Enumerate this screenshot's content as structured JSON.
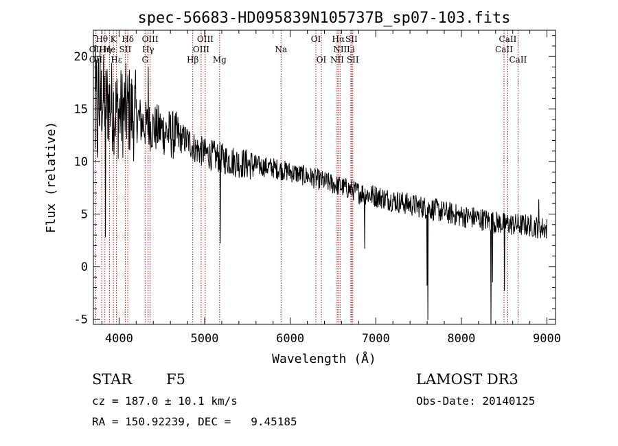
{
  "chart_data": {
    "type": "line",
    "title": "spec-56683-HD095839N105737B_sp07-103.fits",
    "xlabel": "Wavelength (Å)",
    "ylabel": "Flux (relative)",
    "xlim": [
      3700,
      9100
    ],
    "ylim": [
      -5.5,
      22.5
    ],
    "xticks": [
      4000,
      5000,
      6000,
      7000,
      8000,
      9000
    ],
    "yticks": [
      -5,
      0,
      5,
      10,
      15,
      20
    ],
    "line_color": "#000000",
    "marker_color": "#b00000",
    "continuum": [
      [
        3720,
        14
      ],
      [
        3800,
        16
      ],
      [
        3900,
        15.5
      ],
      [
        4000,
        14.5
      ],
      [
        4100,
        15
      ],
      [
        4200,
        14.2
      ],
      [
        4300,
        13.5
      ],
      [
        4400,
        13.2
      ],
      [
        4500,
        13
      ],
      [
        4600,
        12.6
      ],
      [
        4700,
        12.3
      ],
      [
        4800,
        12
      ],
      [
        4900,
        11.2
      ],
      [
        5000,
        10.8
      ],
      [
        5200,
        10.3
      ],
      [
        5400,
        9.9
      ],
      [
        5600,
        9.6
      ],
      [
        5800,
        9.4
      ],
      [
        6000,
        9
      ],
      [
        6200,
        8.6
      ],
      [
        6400,
        8.1
      ],
      [
        6600,
        7.6
      ],
      [
        6800,
        7.1
      ],
      [
        7000,
        6.7
      ],
      [
        7200,
        6.3
      ],
      [
        7400,
        5.9
      ],
      [
        7600,
        5.6
      ],
      [
        7800,
        5.2
      ],
      [
        8000,
        4.8
      ],
      [
        8200,
        4.6
      ],
      [
        8400,
        4.2
      ],
      [
        8600,
        4.0
      ],
      [
        8800,
        3.9
      ],
      [
        9000,
        3.6
      ]
    ],
    "features": [
      {
        "x": 3840,
        "y": 2.8
      },
      {
        "x": 4340,
        "y": 19
      },
      {
        "x": 5180,
        "y": 2.2
      },
      {
        "x": 6870,
        "y": 1.7
      },
      {
        "x": 7595,
        "y": -1.8
      },
      {
        "x": 7605,
        "y": -5.1
      },
      {
        "x": 8345,
        "y": -5.5
      },
      {
        "x": 8360,
        "y": -1.5
      },
      {
        "x": 8500,
        "y": -2.3
      },
      {
        "x": 8900,
        "y": 6.4
      }
    ],
    "lines": [
      {
        "label": "Hθ",
        "x": 3798,
        "row": 0
      },
      {
        "label": "K",
        "x": 3934,
        "row": 0
      },
      {
        "label": "Hδ",
        "x": 4102,
        "row": 0
      },
      {
        "label": "OIII",
        "x": 4363,
        "row": 0
      },
      {
        "label": "OIII",
        "x": 5007,
        "row": 0
      },
      {
        "label": "OI",
        "x": 6300,
        "row": 0
      },
      {
        "label": "Hα",
        "x": 6563,
        "row": 0
      },
      {
        "label": "SII",
        "x": 6716,
        "row": 0
      },
      {
        "label": "CaII",
        "x": 8542,
        "row": 0
      },
      {
        "label": "OII",
        "x": 3727,
        "row": 1
      },
      {
        "label": "Hη",
        "x": 3835,
        "row": 1
      },
      {
        "label": "He",
        "x": 3889,
        "row": 1
      },
      {
        "label": "SII",
        "x": 4072,
        "row": 1
      },
      {
        "label": "Hγ",
        "x": 4340,
        "row": 1
      },
      {
        "label": "OIII",
        "x": 4959,
        "row": 1
      },
      {
        "label": "NII",
        "x": 6583,
        "row": 1
      },
      {
        "label": "Li",
        "x": 6708,
        "row": 1
      },
      {
        "label": "CaII",
        "x": 8498,
        "row": 1
      },
      {
        "label": "Na",
        "x": 5893,
        "row": 1
      },
      {
        "label": "OII",
        "x": 3727,
        "row": 2
      },
      {
        "label": "Hε",
        "x": 3970,
        "row": 2
      },
      {
        "label": "G",
        "x": 4304,
        "row": 2
      },
      {
        "label": "Hβ",
        "x": 4861,
        "row": 2
      },
      {
        "label": "Mg",
        "x": 5175,
        "row": 2
      },
      {
        "label": "OI",
        "x": 6364,
        "row": 2
      },
      {
        "label": "NII",
        "x": 6548,
        "row": 2
      },
      {
        "label": "SII",
        "x": 6731,
        "row": 2
      },
      {
        "label": "CaII",
        "x": 8662,
        "row": 2
      }
    ]
  },
  "info": {
    "class_label": "STAR",
    "subclass": "F5",
    "survey": "LAMOST DR3",
    "cz": "cz = 187.0 ± 10.1 km/s",
    "obs_date": "Obs-Date: 20140125",
    "coords": "RA = 150.92239, DEC =   9.45185"
  }
}
